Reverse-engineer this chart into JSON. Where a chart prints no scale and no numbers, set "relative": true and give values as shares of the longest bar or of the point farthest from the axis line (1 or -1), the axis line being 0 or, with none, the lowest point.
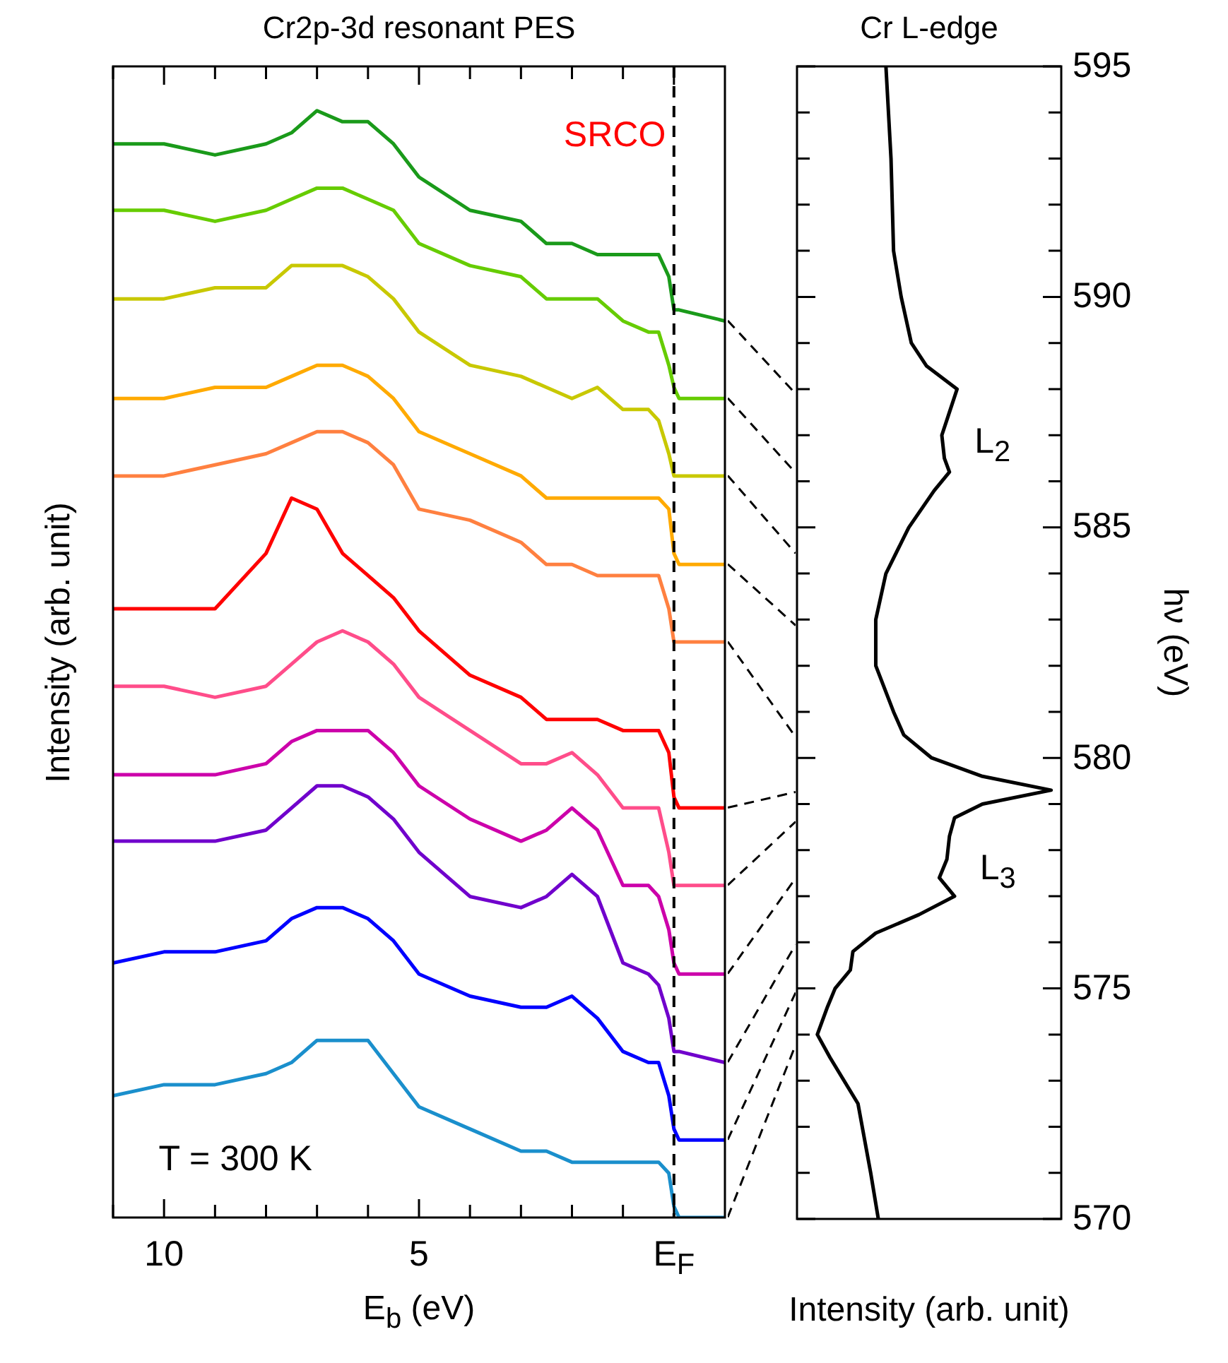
{
  "chart_data": [
    {
      "type": "line",
      "title": "Cr2p-3d resonant PES",
      "xlabel": "E$_{b}$ (eV)",
      "ylabel": "Intensity (arb. unit)",
      "relative": true,
      "tick_labels": "x",
      "x": [
        11,
        10,
        9,
        8,
        7.5,
        7,
        6.5,
        6,
        5.5,
        5,
        4,
        3,
        2.5,
        2,
        1.5,
        1,
        0.5,
        0.3,
        0.1,
        0,
        -0.1,
        -1
      ],
      "xlim": [
        11,
        -1
      ],
      "xticks": [
        {
          "value": 11,
          "label": null
        },
        10,
        {
          "value": 9,
          "label": null
        },
        {
          "value": 8,
          "label": null
        },
        {
          "value": 7,
          "label": null
        },
        {
          "value": 6,
          "label": null
        },
        5,
        {
          "value": 4,
          "label": null
        },
        {
          "value": 3,
          "label": null
        },
        {
          "value": 2,
          "label": null
        },
        {
          "value": 1,
          "label": null
        },
        {
          "value": 0,
          "label": "E$_{F}$"
        }
      ],
      "series": [
        {
          "color": "#1a9a1a",
          "values": [
            0.97,
            0.97,
            0.96,
            0.97,
            0.98,
            1.0,
            0.99,
            0.99,
            0.97,
            0.94,
            0.91,
            0.9,
            0.88,
            0.88,
            0.87,
            0.87,
            0.87,
            0.87,
            0.85,
            0.82,
            0.82,
            0.81
          ]
        },
        {
          "color": "#66cc00",
          "values": [
            0.91,
            0.91,
            0.9,
            0.91,
            0.92,
            0.93,
            0.93,
            0.92,
            0.91,
            0.88,
            0.86,
            0.85,
            0.83,
            0.83,
            0.83,
            0.81,
            0.8,
            0.8,
            0.77,
            0.75,
            0.74,
            0.74
          ]
        },
        {
          "color": "#c8c800",
          "values": [
            0.83,
            0.83,
            0.84,
            0.84,
            0.86,
            0.86,
            0.86,
            0.85,
            0.83,
            0.8,
            0.77,
            0.76,
            0.75,
            0.74,
            0.75,
            0.73,
            0.73,
            0.72,
            0.69,
            0.67,
            0.67,
            0.67
          ]
        },
        {
          "color": "#ffaa00",
          "values": [
            0.74,
            0.74,
            0.75,
            0.75,
            0.76,
            0.77,
            0.77,
            0.76,
            0.74,
            0.71,
            0.69,
            0.67,
            0.65,
            0.65,
            0.65,
            0.65,
            0.65,
            0.65,
            0.64,
            0.6,
            0.59,
            0.59
          ]
        },
        {
          "color": "#ff8040",
          "values": [
            0.67,
            0.67,
            0.68,
            0.69,
            0.7,
            0.71,
            0.71,
            0.7,
            0.68,
            0.64,
            0.63,
            0.61,
            0.59,
            0.59,
            0.58,
            0.58,
            0.58,
            0.58,
            0.55,
            0.52,
            0.52,
            0.52
          ]
        },
        {
          "color": "#ff0000",
          "values": [
            0.55,
            0.55,
            0.55,
            0.6,
            0.65,
            0.64,
            0.6,
            0.58,
            0.56,
            0.53,
            0.49,
            0.47,
            0.45,
            0.45,
            0.45,
            0.44,
            0.44,
            0.44,
            0.42,
            0.38,
            0.37,
            0.37
          ]
        },
        {
          "color": "#ff4d8a",
          "values": [
            0.48,
            0.48,
            0.47,
            0.48,
            0.5,
            0.52,
            0.53,
            0.52,
            0.5,
            0.47,
            0.44,
            0.41,
            0.41,
            0.42,
            0.4,
            0.37,
            0.37,
            0.37,
            0.33,
            0.3,
            0.3,
            0.3
          ]
        },
        {
          "color": "#cc00aa",
          "values": [
            0.4,
            0.4,
            0.4,
            0.41,
            0.43,
            0.44,
            0.44,
            0.44,
            0.42,
            0.39,
            0.36,
            0.34,
            0.35,
            0.37,
            0.35,
            0.3,
            0.3,
            0.29,
            0.26,
            0.23,
            0.22,
            0.22
          ]
        },
        {
          "color": "#7000cc",
          "values": [
            0.34,
            0.34,
            0.34,
            0.35,
            0.37,
            0.39,
            0.39,
            0.38,
            0.36,
            0.33,
            0.29,
            0.28,
            0.29,
            0.31,
            0.29,
            0.23,
            0.22,
            0.21,
            0.18,
            0.15,
            0.15,
            0.14
          ]
        },
        {
          "color": "#0000ff",
          "values": [
            0.23,
            0.24,
            0.24,
            0.25,
            0.27,
            0.28,
            0.28,
            0.27,
            0.25,
            0.22,
            0.2,
            0.19,
            0.19,
            0.2,
            0.18,
            0.15,
            0.14,
            0.14,
            0.11,
            0.08,
            0.07,
            0.07
          ]
        },
        {
          "color": "#1a8fcc",
          "values": [
            0.11,
            0.12,
            0.12,
            0.13,
            0.14,
            0.16,
            0.16,
            0.16,
            0.13,
            0.1,
            0.08,
            0.06,
            0.06,
            0.05,
            0.05,
            0.05,
            0.05,
            0.05,
            0.04,
            0.01,
            0.0,
            0.0
          ]
        }
      ],
      "ref_lines": [
        {
          "axis": "x",
          "value": 0,
          "color": "#000000",
          "line_style": "dashed"
        }
      ],
      "annotations": [
        "SRCO",
        "T = 300 K"
      ]
    },
    {
      "type": "line",
      "orientation": "horizontal",
      "title": "Cr L-edge",
      "xlabel": "Intensity (arb. unit)",
      "ylabel": "hν (eV)",
      "relative": true,
      "tick_labels": "y",
      "x": [
        595,
        593,
        591,
        590,
        589,
        588.5,
        588,
        587.5,
        587,
        586.5,
        586.2,
        585.8,
        585,
        584,
        583,
        582,
        581,
        580.5,
        580,
        579.6,
        579.3,
        579,
        578.7,
        578.3,
        577.8,
        577.4,
        577,
        576.6,
        576.2,
        575.8,
        575.4,
        575,
        574.6,
        574,
        573.5,
        572.5,
        571,
        570
      ],
      "ylim": [
        570,
        595
      ],
      "yticks": [
        570,
        {
          "value": 571,
          "label": null
        },
        {
          "value": 572,
          "label": null
        },
        {
          "value": 573,
          "label": null
        },
        {
          "value": 574,
          "label": null
        },
        575,
        {
          "value": 576,
          "label": null
        },
        {
          "value": 577,
          "label": null
        },
        {
          "value": 578,
          "label": null
        },
        {
          "value": 579,
          "label": null
        },
        580,
        {
          "value": 581,
          "label": null
        },
        {
          "value": 582,
          "label": null
        },
        {
          "value": 583,
          "label": null
        },
        {
          "value": 584,
          "label": null
        },
        585,
        {
          "value": 586,
          "label": null
        },
        {
          "value": 587,
          "label": null
        },
        {
          "value": 588,
          "label": null
        },
        {
          "value": 589,
          "label": null
        },
        590,
        {
          "value": 591,
          "label": null
        },
        {
          "value": 592,
          "label": null
        },
        {
          "value": 593,
          "label": null
        },
        {
          "value": 594,
          "label": null
        },
        595
      ],
      "series": [
        {
          "color": "#000000",
          "values": [
            0.35,
            0.37,
            0.38,
            0.41,
            0.45,
            0.51,
            0.63,
            0.6,
            0.57,
            0.58,
            0.6,
            0.54,
            0.44,
            0.35,
            0.31,
            0.31,
            0.38,
            0.42,
            0.53,
            0.73,
            1.0,
            0.73,
            0.62,
            0.6,
            0.59,
            0.56,
            0.62,
            0.48,
            0.31,
            0.22,
            0.21,
            0.15,
            0.12,
            0.08,
            0.13,
            0.24,
            0.29,
            0.32
          ]
        }
      ],
      "annotations": [
        "L$_{2}$",
        "L$_{3}$"
      ]
    }
  ]
}
